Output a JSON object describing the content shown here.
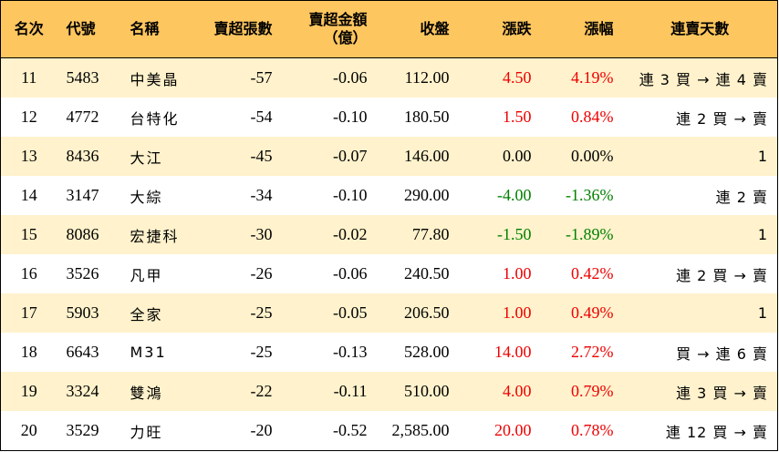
{
  "columns": [
    "名次",
    "代號",
    "名稱",
    "賣超張數",
    "賣超金額",
    "（億）",
    "收盤",
    "漲跌",
    "漲幅",
    "連賣天數"
  ],
  "colors": {
    "header_bg": "#FEC65E",
    "stripe_bg": "#FFF2CC",
    "up": "#EE0000",
    "down": "#008000"
  },
  "rows": [
    {
      "rank": "11",
      "code": "5483",
      "name": "中美晶",
      "sell_lots": "-57",
      "sell_amount": "-0.06",
      "close": "112.00",
      "change": "4.50",
      "pct": "4.19%",
      "trend": "up",
      "streak": "連 3 買 → 連 4 賣"
    },
    {
      "rank": "12",
      "code": "4772",
      "name": "台特化",
      "sell_lots": "-54",
      "sell_amount": "-0.10",
      "close": "180.50",
      "change": "1.50",
      "pct": "0.84%",
      "trend": "up",
      "streak": "連 2 買 → 賣"
    },
    {
      "rank": "13",
      "code": "8436",
      "name": "大江",
      "sell_lots": "-45",
      "sell_amount": "-0.07",
      "close": "146.00",
      "change": "0.00",
      "pct": "0.00%",
      "trend": "flat",
      "streak": "1"
    },
    {
      "rank": "14",
      "code": "3147",
      "name": "大綜",
      "sell_lots": "-34",
      "sell_amount": "-0.10",
      "close": "290.00",
      "change": "-4.00",
      "pct": "-1.36%",
      "trend": "down",
      "streak": "連 2 賣"
    },
    {
      "rank": "15",
      "code": "8086",
      "name": "宏捷科",
      "sell_lots": "-30",
      "sell_amount": "-0.02",
      "close": "77.80",
      "change": "-1.50",
      "pct": "-1.89%",
      "trend": "down",
      "streak": "1"
    },
    {
      "rank": "16",
      "code": "3526",
      "name": "凡甲",
      "sell_lots": "-26",
      "sell_amount": "-0.06",
      "close": "240.50",
      "change": "1.00",
      "pct": "0.42%",
      "trend": "up",
      "streak": "連 2 買 → 賣"
    },
    {
      "rank": "17",
      "code": "5903",
      "name": "全家",
      "sell_lots": "-25",
      "sell_amount": "-0.05",
      "close": "206.50",
      "change": "1.00",
      "pct": "0.49%",
      "trend": "up",
      "streak": "1"
    },
    {
      "rank": "18",
      "code": "6643",
      "name": "M31",
      "sell_lots": "-25",
      "sell_amount": "-0.13",
      "close": "528.00",
      "change": "14.00",
      "pct": "2.72%",
      "trend": "up",
      "streak": "買 → 連 6 賣"
    },
    {
      "rank": "19",
      "code": "3324",
      "name": "雙鴻",
      "sell_lots": "-22",
      "sell_amount": "-0.11",
      "close": "510.00",
      "change": "4.00",
      "pct": "0.79%",
      "trend": "up",
      "streak": "連 3 買 → 賣"
    },
    {
      "rank": "20",
      "code": "3529",
      "name": "力旺",
      "sell_lots": "-20",
      "sell_amount": "-0.52",
      "close": "2,585.00",
      "change": "20.00",
      "pct": "0.78%",
      "trend": "up",
      "streak": "連 12 買 → 賣"
    }
  ]
}
